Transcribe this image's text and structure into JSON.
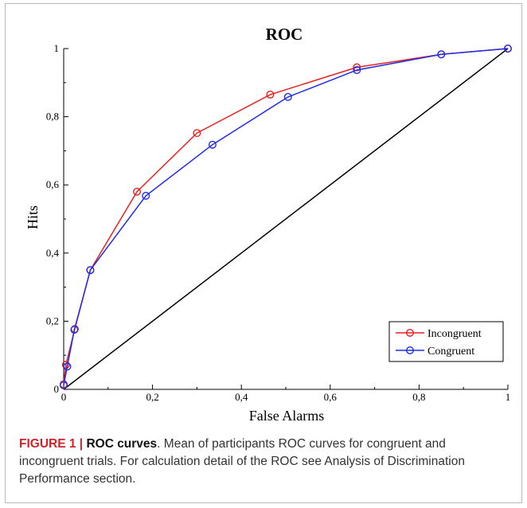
{
  "chart_data": {
    "type": "line",
    "title": "ROC",
    "xlabel": "False Alarms",
    "ylabel": "Hits",
    "xlim": [
      0,
      1
    ],
    "ylim": [
      0,
      1
    ],
    "x_ticks": [
      "0",
      "0,2",
      "0,4",
      "0,6",
      "0,8",
      "1"
    ],
    "y_ticks": [
      "0",
      "0,2",
      "0,4",
      "0,6",
      "0,8",
      "1"
    ],
    "grid": false,
    "legend_position": "bottom-right",
    "series": [
      {
        "name": "Incongruent",
        "color": "#e8221f",
        "marker": "circle",
        "x": [
          0.0,
          0.005,
          0.025,
          0.06,
          0.165,
          0.3,
          0.465,
          0.66,
          0.85,
          1.0
        ],
        "y": [
          0.015,
          0.072,
          0.177,
          0.35,
          0.58,
          0.752,
          0.865,
          0.945,
          0.983,
          1.0
        ]
      },
      {
        "name": "Congruent",
        "color": "#1f2de8",
        "marker": "circle",
        "x": [
          0.0,
          0.008,
          0.024,
          0.06,
          0.185,
          0.335,
          0.505,
          0.66,
          0.85,
          1.0
        ],
        "y": [
          0.012,
          0.067,
          0.175,
          0.35,
          0.568,
          0.718,
          0.858,
          0.937,
          0.983,
          1.0
        ]
      },
      {
        "name": "",
        "color": "#000000",
        "marker": "none",
        "x": [
          0,
          1
        ],
        "y": [
          0,
          1
        ]
      }
    ]
  },
  "caption": {
    "label": "FIGURE 1 | ",
    "heading": "ROC curves",
    "text": ". Mean of participants ROC curves for congruent and incongruent trials. For calculation detail of the ROC see Analysis of Discrimination Performance section."
  }
}
